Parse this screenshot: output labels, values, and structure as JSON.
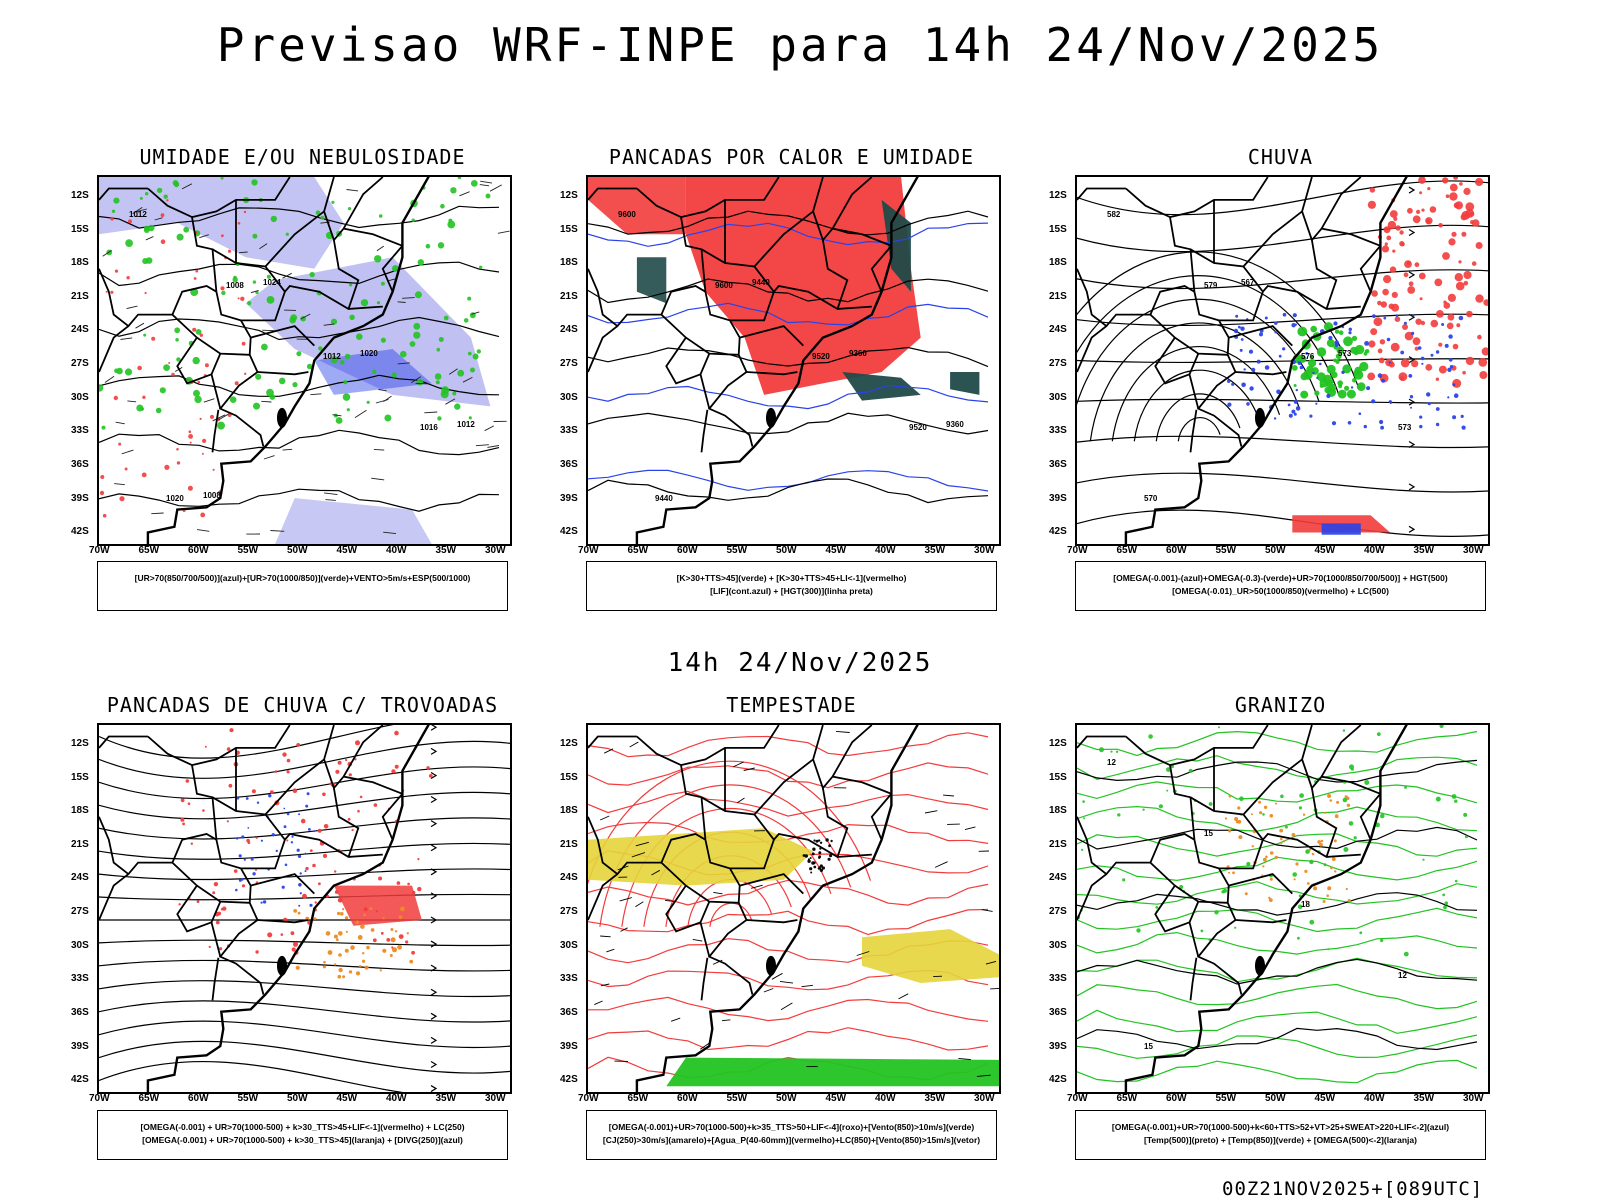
{
  "title": "Previsao WRF-INPE  para 14h 24/Nov/2025",
  "middle_time": "14h 24/Nov/2025",
  "footer": "00Z21NOV2025+[089UTC]",
  "lat_labels": [
    "12S",
    "15S",
    "18S",
    "21S",
    "24S",
    "27S",
    "30S",
    "33S",
    "36S",
    "39S",
    "42S"
  ],
  "lon_labels": [
    "70W",
    "65W",
    "60W",
    "55W",
    "50W",
    "45W",
    "40W",
    "35W",
    "30W"
  ],
  "panels": [
    {
      "title": "UMIDADE E/OU NEBULOSIDADE",
      "legend1": "[UR>70(850/700/500)](azul)+[UR>70(1000/850)](verde)+VENTO>5m/s+ESP(500/1000)",
      "legend2": "",
      "contour_labels": [
        "1012",
        "1008",
        "1012",
        "1016",
        "1020",
        "1024",
        "1020",
        "1012",
        "1008"
      ]
    },
    {
      "title": "PANCADAS POR CALOR E UMIDADE",
      "legend1": "[K>30+TTS>45](verde) + [K>30+TTS>45+LI<-1](vermelho)",
      "legend2": "[LIF](cont.azul) + [HGT(300)](linha preta)",
      "contour_labels": [
        "9600",
        "9600",
        "9520",
        "9520",
        "9440",
        "9440",
        "9360",
        "9360"
      ]
    },
    {
      "title": "CHUVA",
      "legend1": "[OMEGA(-0.001)-(azul)+OMEGA(-0.3)-(verde)+UR>70(1000/850/700/500)] + HGT(500)",
      "legend2": "[OMEGA(-0.01)_UR>50(1000/850)(vermelho) + LC(500)",
      "contour_labels": [
        "582",
        "579",
        "576",
        "573",
        "570",
        "567",
        "573"
      ]
    },
    {
      "title": "PANCADAS DE CHUVA C/ TROVOADAS",
      "legend1": "[OMEGA(-0.001) + UR>70(1000-500) + k>30_TTS>45+LIF<-1](vermelho) + LC(250)",
      "legend2": "[OMEGA(-0.001) + UR>70(1000-500) + k>30_TTS>45](laranja) + [DIVG(250)](azul)",
      "contour_labels": []
    },
    {
      "title": "TEMPESTADE",
      "legend1": "[OMEGA(-0.001)+UR>70(1000-500)+k>35_TTS>50+LIF<-4](roxo)+[Vento(850)>10m/s](verde)",
      "legend2": "[CJ(250)>30m/s](amarelo)+[Agua_P(40-60mm)](vermelho)+LC(850)+[Vento(850)>15m/s](vetor)",
      "contour_labels": []
    },
    {
      "title": "GRANIZO",
      "legend1": "[OMEGA(-0.001)+UR>70(1000-500)+k<60+TTS>52+VT>25+SWEAT>220+LIF<-2](azul)",
      "legend2": "[Temp(500)](preto) + [Temp(850)](verde) + [OMEGA(500)<-2](laranja)",
      "contour_labels": [
        "12",
        "15",
        "18",
        "12",
        "15"
      ]
    }
  ],
  "colors": {
    "red": "#f23c3c",
    "green": "#22c322",
    "blue": "#2a43e8",
    "lavender": "#b0b0f0",
    "yellow": "#e6d43a",
    "orange": "#ee8a22",
    "darkteal": "#1f4a48"
  }
}
